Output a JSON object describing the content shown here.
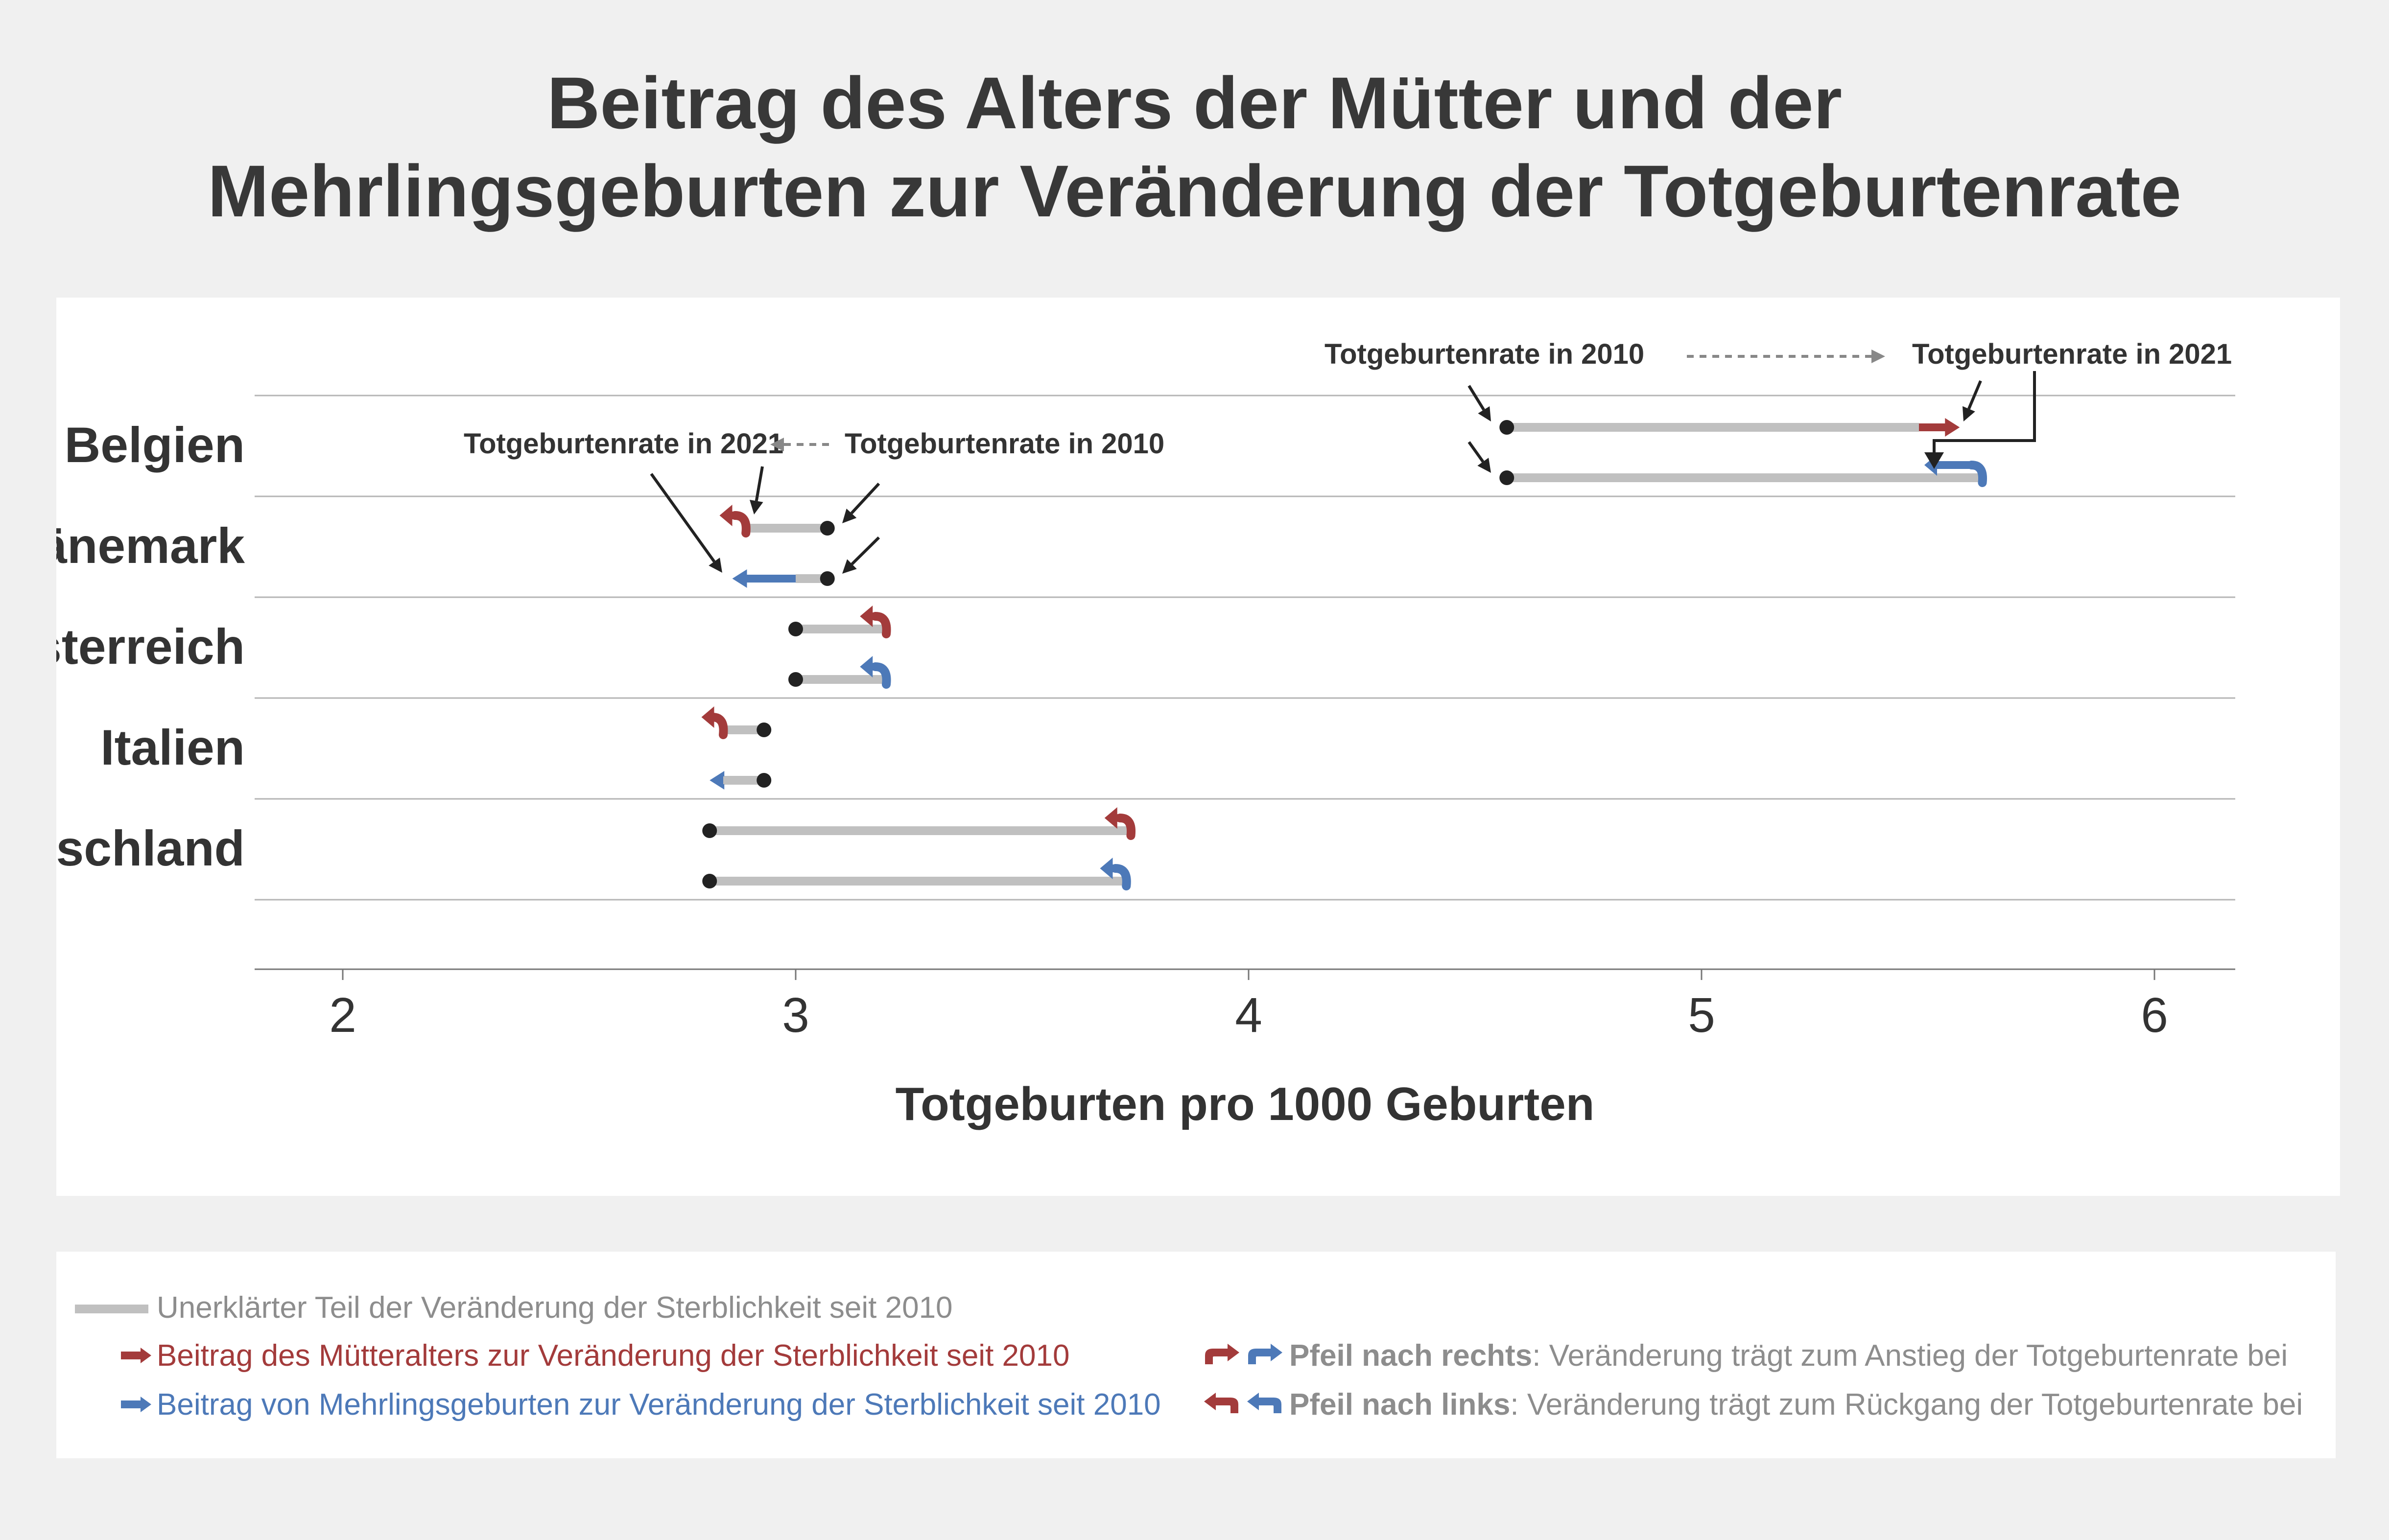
{
  "title_lines": [
    "Beitrag des Alters der Mütter und der",
    "Mehrlingsgeburten zur Veränderung der Totgeburtenrate"
  ],
  "colors": {
    "unexplained": "#c0c0c0",
    "maternal_age": "#a33b3b",
    "multiple_births": "#4d79b8",
    "dot": "#222222"
  },
  "chart_data": {
    "type": "dumbbell-arrow",
    "xlabel": "Totgeburten pro 1000 Geburten",
    "xlim": [
      1.8,
      6.2
    ],
    "xticks": [
      2,
      3,
      4,
      5,
      6
    ],
    "countries": [
      {
        "name": "Belgien",
        "rows": [
          {
            "factor": "maternal_age",
            "rate_2010": 4.57,
            "rate_2021": 5.57,
            "arrow_start": 5.48,
            "arrow_end": 5.57,
            "arrow_direction": "right",
            "arrow_style": "straight"
          },
          {
            "factor": "multiple_births",
            "rate_2010": 4.57,
            "rate_2021": 5.52,
            "arrow_start": 5.62,
            "arrow_end": 5.52,
            "arrow_direction": "left",
            "arrow_style": "hook"
          }
        ]
      },
      {
        "name": "Dänemark",
        "rows": [
          {
            "factor": "maternal_age",
            "rate_2010": 3.07,
            "rate_2021": 2.86,
            "arrow_start": 2.89,
            "arrow_end": 2.86,
            "arrow_direction": "left",
            "arrow_style": "hook"
          },
          {
            "factor": "multiple_births",
            "rate_2010": 3.07,
            "rate_2021": 2.86,
            "arrow_start": 3.0,
            "arrow_end": 2.86,
            "arrow_direction": "left",
            "arrow_style": "straight"
          }
        ]
      },
      {
        "name": "Österreich",
        "rows": [
          {
            "factor": "maternal_age",
            "rate_2010": 3.0,
            "rate_2021": 3.2,
            "arrow_start": 3.2,
            "arrow_end": 3.17,
            "arrow_direction": "left",
            "arrow_style": "hook"
          },
          {
            "factor": "multiple_births",
            "rate_2010": 3.0,
            "rate_2021": 3.2,
            "arrow_start": 3.2,
            "arrow_end": 3.17,
            "arrow_direction": "left",
            "arrow_style": "hook"
          }
        ]
      },
      {
        "name": "Italien",
        "rows": [
          {
            "factor": "maternal_age",
            "rate_2010": 2.93,
            "rate_2021": 2.82,
            "arrow_start": 2.84,
            "arrow_end": 2.82,
            "arrow_direction": "left",
            "arrow_style": "hook"
          },
          {
            "factor": "multiple_births",
            "rate_2010": 2.93,
            "rate_2021": 2.81,
            "arrow_start": 2.84,
            "arrow_end": 2.81,
            "arrow_direction": "left",
            "arrow_style": "straight"
          }
        ]
      },
      {
        "name": "Deutschland",
        "rows": [
          {
            "factor": "maternal_age",
            "rate_2010": 2.81,
            "rate_2021": 3.74,
            "arrow_start": 3.74,
            "arrow_end": 3.71,
            "arrow_direction": "left",
            "arrow_style": "hook"
          },
          {
            "factor": "multiple_births",
            "rate_2010": 2.81,
            "rate_2021": 3.73,
            "arrow_start": 3.73,
            "arrow_end": 3.7,
            "arrow_direction": "left",
            "arrow_style": "hook"
          }
        ]
      }
    ],
    "annotations": {
      "belgien_2010": "Totgeburtenrate in 2010",
      "belgien_2021": "Totgeburtenrate in 2021",
      "daenemark_2021": "Totgeburtenrate in 2021",
      "daenemark_2010": "Totgeburtenrate in 2010"
    },
    "grid": "horizontal separators"
  },
  "legend": {
    "unexplained": "Unerklärter Teil der Veränderung der Sterblichkeit seit 2010",
    "maternal_age": "Beitrag des Mütteralters zur Veränderung der Sterblichkeit seit 2010",
    "multiple_births": "Beitrag von Mehrlingsgeburten zur Veränderung der Sterblichkeit seit 2010",
    "right_bold": "Pfeil nach rechts",
    "right_text": ": Veränderung trägt zum Anstieg der Totgeburtenrate bei",
    "left_bold": "Pfeil nach links",
    "left_text": ": Veränderung trägt zum Rückgang der Totgeburtenrate bei"
  }
}
